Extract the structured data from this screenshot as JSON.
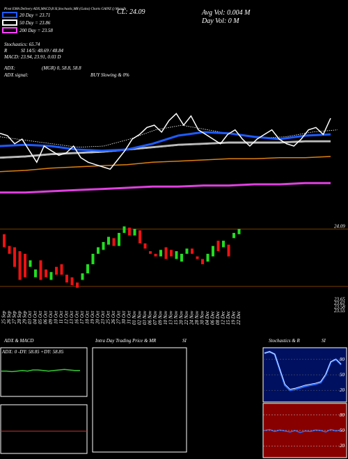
{
  "header": {
    "title": "Pivot EMA Delivery ADX,MACD,B SI,Stochastic,MR (Gainz) Charts GAINZ () Munafa",
    "close": "CL: 24.09",
    "avg_vol": "Avg Vol: 0.004  M",
    "day_vol": "Day Vol: 0  M"
  },
  "legend": [
    {
      "text": "20  Day = 23.71",
      "color": "#1e5bff"
    },
    {
      "text": "50  Day = 23.86",
      "color": "#ffffff"
    },
    {
      "text": "200  Day = 23.58",
      "color": "#ff44ff"
    }
  ],
  "indicators": [
    "Stochastics: 65.74",
    "R",
    "SI 14/5: 48.69 / 48.84",
    "MACD: 23.94, 23.91, 0.03 D"
  ],
  "adx": {
    "label": "ADX:",
    "value": "(MGR) 0, 58.8, 58.8",
    "signal_label": "ADX  signal:",
    "signal": "BUY Slowing & 0%"
  },
  "main_chart": {
    "ylim": [
      23.3,
      24.2
    ],
    "price": [
      23.95,
      23.93,
      23.86,
      23.9,
      23.8,
      23.7,
      23.84,
      23.8,
      23.76,
      23.78,
      23.84,
      23.74,
      23.7,
      23.68,
      23.66,
      23.64,
      23.72,
      23.8,
      23.9,
      23.94,
      24.0,
      24.02,
      23.96,
      24.06,
      24.12,
      24.02,
      24.1,
      23.98,
      23.94,
      23.9,
      23.86,
      23.94,
      23.98,
      23.9,
      23.84,
      23.9,
      23.94,
      23.98,
      23.9,
      23.86,
      23.84,
      23.9,
      23.98,
      24.0,
      23.94,
      24.08
    ],
    "ma20": [
      23.84,
      23.85,
      23.84,
      23.81,
      23.8,
      23.81,
      23.86,
      23.93,
      23.96,
      23.95,
      23.92,
      23.9,
      23.93,
      23.94
    ],
    "ma20_dots": [
      23.92,
      23.89,
      23.86,
      23.83,
      23.84,
      23.9,
      23.98,
      24.02,
      23.98,
      23.94,
      23.91,
      23.92,
      23.96,
      23.98
    ],
    "ma50": [
      23.74,
      23.75,
      23.77,
      23.78,
      23.79,
      23.81,
      23.83,
      23.85,
      23.86,
      23.87,
      23.87,
      23.87,
      23.88,
      23.88
    ],
    "ma100": [
      23.62,
      23.63,
      23.65,
      23.66,
      23.67,
      23.68,
      23.7,
      23.71,
      23.72,
      23.73,
      23.73,
      23.74,
      23.74,
      23.75
    ],
    "ma200": [
      23.44,
      23.44,
      23.45,
      23.46,
      23.47,
      23.48,
      23.49,
      23.49,
      23.5,
      23.5,
      23.51,
      23.51,
      23.52,
      23.52
    ]
  },
  "candle_chart": {
    "ylim": [
      23.5,
      24.15
    ],
    "levels": [
      24.09,
      23.65,
      23.61,
      23.58,
      23.55
    ],
    "open": [
      24.05,
      23.96,
      23.95,
      23.92,
      23.9,
      23.8,
      23.72,
      23.85,
      23.78,
      23.7,
      23.8,
      23.82,
      23.74,
      23.72,
      23.68,
      23.7,
      23.75,
      23.82,
      23.9,
      23.93,
      23.97,
      24.02,
      23.96,
      24.06,
      24.1,
      24.04,
      24.08,
      23.98,
      23.92,
      23.9,
      23.88,
      23.95,
      23.93,
      23.86,
      23.84,
      23.9,
      23.94,
      23.88,
      23.86,
      23.84,
      23.88,
      24.0,
      23.95,
      23.97,
      24.02,
      24.05
    ],
    "close": [
      23.95,
      23.9,
      23.8,
      23.7,
      23.72,
      23.85,
      23.78,
      23.7,
      23.72,
      23.76,
      23.74,
      23.74,
      23.68,
      23.66,
      23.64,
      23.75,
      23.82,
      23.9,
      23.95,
      23.99,
      24.03,
      23.96,
      24.06,
      24.11,
      24.04,
      24.09,
      23.98,
      23.94,
      23.9,
      23.88,
      23.93,
      23.86,
      23.88,
      23.92,
      23.9,
      23.94,
      23.9,
      23.86,
      23.82,
      23.9,
      23.96,
      23.92,
      24.0,
      23.88,
      24.06,
      24.09
    ],
    "dates": [
      "25 Sep",
      "26 Sep",
      "27 Sep",
      "28 Sep",
      "29 Sep",
      "03 Oct",
      "04 Oct",
      "05 Oct",
      "06 Oct",
      "09 Oct",
      "10 Oct",
      "11 Oct",
      "12 Oct",
      "13 Oct",
      "16 Oct",
      "17 Oct",
      "18 Oct",
      "19 Oct",
      "20 Oct",
      "23 Oct",
      "25 Oct",
      "26 Oct",
      "27 Oct",
      "30 Oct",
      "31 Oct",
      "01 Nov",
      "02 Nov",
      "03 Nov",
      "06 Nov",
      "07 Nov",
      "09 Nov",
      "10 Nov",
      "13 Nov",
      "15 Nov",
      "20 Nov",
      "22 Nov",
      "24 Nov",
      "28 Nov",
      "30 Nov",
      "04 Dec",
      "06 Dec",
      "08 Dec",
      "12 Dec",
      "15 Dec",
      "19 Dec",
      "22 Dec"
    ]
  },
  "panels": {
    "adx_title": "ADX  & MACD",
    "adx_text": "ADX: 0   -DY: 58.85  +DY: 58.85",
    "intraday_title": "Intra  Day Trading Price  & MR",
    "intraday_si": "SI",
    "stoch_title": "Stochastics  & R",
    "stoch_si": "SI",
    "adx_line": [
      58,
      58,
      57,
      58,
      59,
      58,
      60,
      60,
      59,
      58,
      59,
      60,
      61,
      60,
      59,
      59
    ],
    "stoch_line": [
      92,
      95,
      90,
      60,
      30,
      20,
      22,
      25,
      28,
      30,
      32,
      35,
      50,
      75,
      80,
      70
    ],
    "stoch_ticks": [
      80,
      50,
      20
    ],
    "rsi_line": [
      50,
      52,
      48,
      51,
      49,
      47,
      50,
      46,
      49,
      48,
      51,
      50,
      47,
      52,
      49,
      51
    ],
    "rsi_ticks": [
      80,
      50,
      20
    ]
  }
}
